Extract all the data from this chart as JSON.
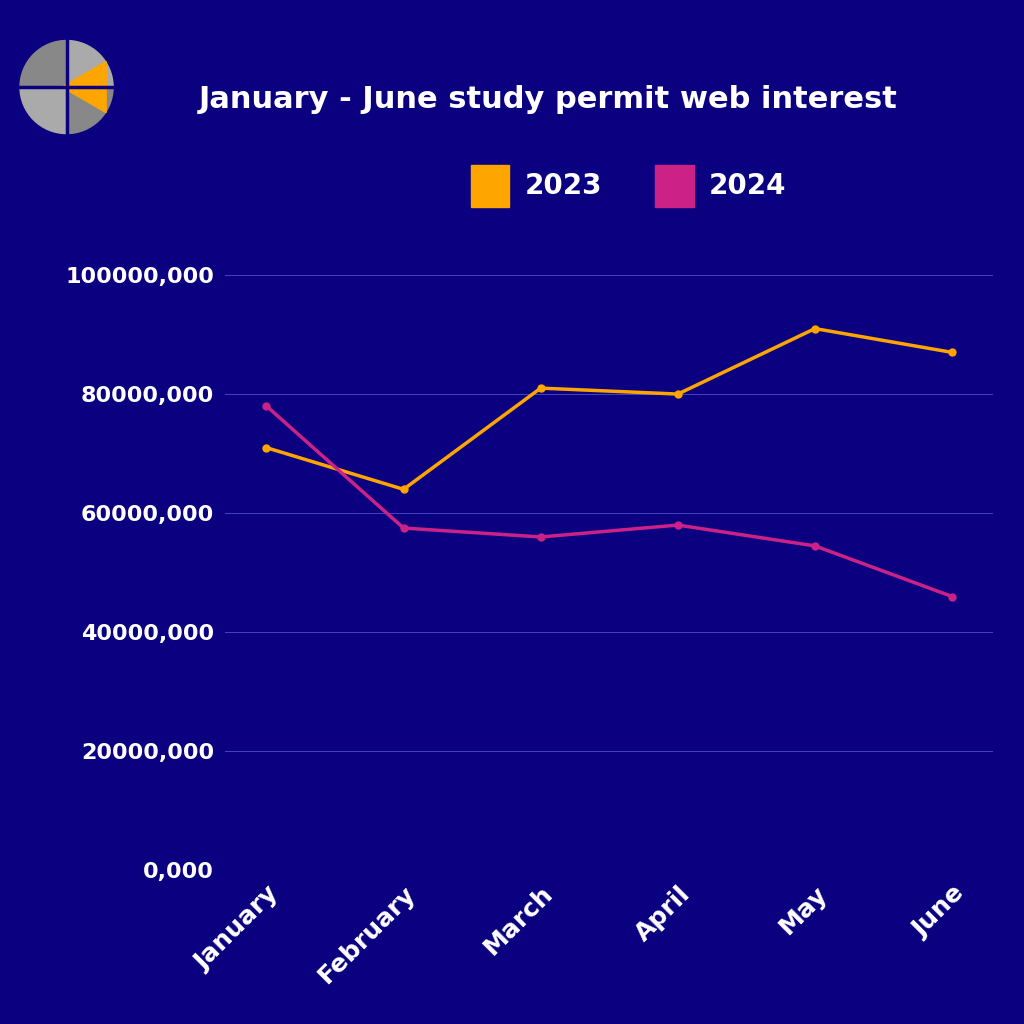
{
  "title": "January - June study permit web interest",
  "background_color": "#0a0080",
  "text_color": "#ffffff",
  "months": [
    "January",
    "February",
    "March",
    "April",
    "May",
    "June"
  ],
  "series_2023": [
    71000000,
    64000000,
    81000000,
    80000000,
    91000000,
    87000000
  ],
  "series_2024": [
    78000000,
    57500000,
    56000000,
    58000000,
    54500000,
    46000000
  ],
  "color_2023": "#FFA500",
  "color_2024": "#CC2288",
  "ylim": [
    0,
    110000000
  ],
  "yticks": [
    0,
    20000000,
    40000000,
    60000000,
    80000000,
    100000000
  ],
  "ytick_labels": [
    "0,000",
    "20000,000",
    "40000,000",
    "60000,000",
    "80000,000",
    "100000,000"
  ],
  "legend_2023": "2023",
  "legend_2024": "2024",
  "grid_color": "#4444bb",
  "line_width": 2.5,
  "marker_size": 5,
  "logo_gray": "#888888",
  "logo_gray_light": "#aaaaaa",
  "logo_orange": "#FFA500",
  "logo_dark_line": "#0a0080"
}
